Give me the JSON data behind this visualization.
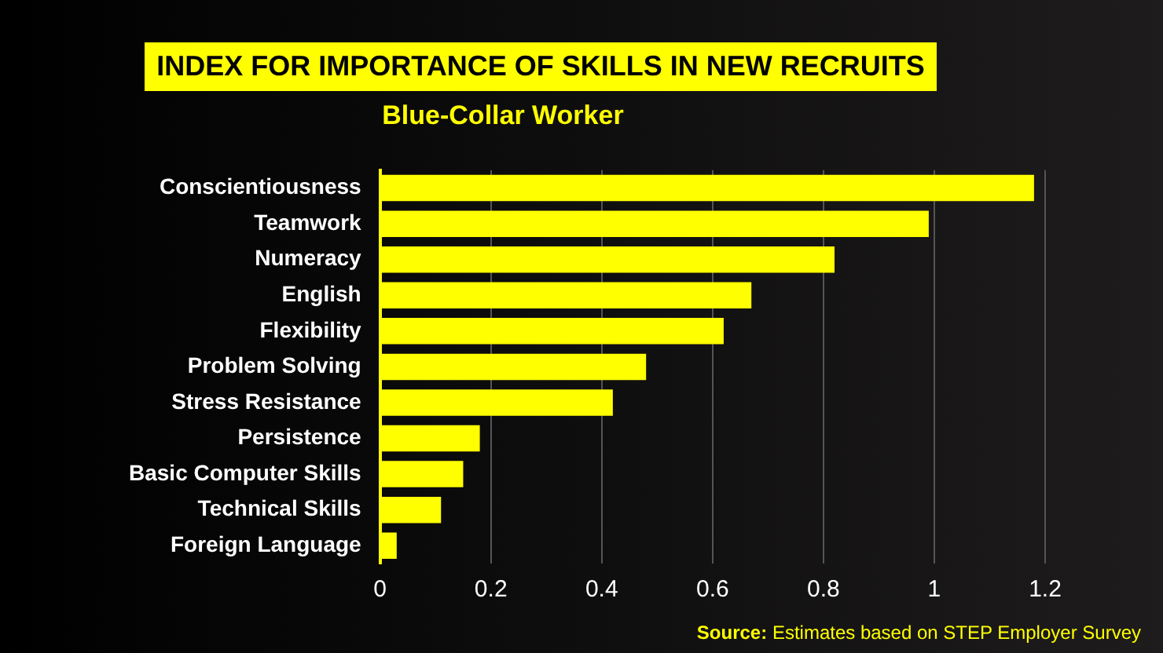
{
  "chart_data": {
    "type": "bar",
    "orientation": "horizontal",
    "title": "INDEX FOR IMPORTANCE OF SKILLS IN NEW RECRUITS",
    "subtitle": "Blue-Collar Worker",
    "categories": [
      "Conscientiousness",
      "Teamwork",
      "Numeracy",
      "English",
      "Flexibility",
      "Problem Solving",
      "Stress Resistance",
      "Persistence",
      "Basic Computer Skills",
      "Technical Skills",
      "Foreign Language"
    ],
    "values": [
      1.18,
      0.99,
      0.82,
      0.67,
      0.62,
      0.48,
      0.42,
      0.18,
      0.15,
      0.11,
      0.03
    ],
    "color": "#ffff00",
    "xlim": [
      0,
      1.2
    ],
    "xticks": [
      0,
      0.2,
      0.4,
      0.6,
      0.8,
      1,
      1.2
    ],
    "grid": "x",
    "legend": false,
    "annotations": [
      "Source: Estimates based on STEP Employer Survey"
    ]
  }
}
